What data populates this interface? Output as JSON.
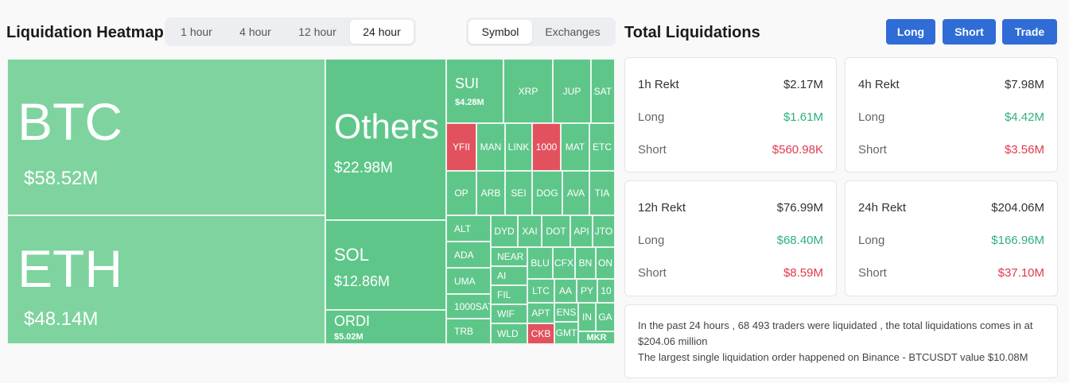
{
  "heatmap": {
    "title": "Liquidation Heatmap",
    "timeframes": [
      {
        "label": "1 hour",
        "active": false
      },
      {
        "label": "4 hour",
        "active": false
      },
      {
        "label": "12 hour",
        "active": false
      },
      {
        "label": "24 hour",
        "active": true
      }
    ],
    "views": [
      {
        "label": "Symbol",
        "active": true
      },
      {
        "label": "Exchanges",
        "active": false
      }
    ],
    "cells": {
      "btc": {
        "symbol": "BTC",
        "value": "$58.52M"
      },
      "eth": {
        "symbol": "ETH",
        "value": "$48.14M"
      },
      "others": {
        "symbol": "Others",
        "value": "$22.98M"
      },
      "sol": {
        "symbol": "SOL",
        "value": "$12.86M"
      },
      "ordi": {
        "symbol": "ORDI",
        "value": "$5.02M"
      },
      "sui": {
        "symbol": "SUI",
        "value": "$4.28M"
      },
      "xrp": "XRP",
      "jup": "JUP",
      "sat": "SAT",
      "yfii": "YFII",
      "man": "MAN",
      "link": "LINK",
      "k1000": "1000",
      "mat": "MAT",
      "etc": "ETC",
      "op": "OP",
      "arb": "ARB",
      "sei": "SEI",
      "dog": "DOG",
      "ava": "AVA",
      "tia": "TIA",
      "alt": "ALT",
      "ada": "ADA",
      "uma": "UMA",
      "sats": "1000SAT",
      "trb": "TRB",
      "dyd": "DYD",
      "xai": "XAI",
      "dot": "DOT",
      "api": "API",
      "jto": "JTO",
      "near": "NEAR",
      "ai": "AI",
      "fil": "FIL",
      "wif": "WIF",
      "wld": "WLD",
      "blu": "BLU",
      "cfx": "CFX",
      "bn": "BN",
      "on": "ON",
      "ltc": "LTC",
      "aa": "AA",
      "py": "PY",
      "k10": "10",
      "apt": "APT",
      "ens": "ENS",
      "in": "IN",
      "ga": "GA",
      "ckb": "CKB",
      "gmt": "GMT",
      "mkr": "MKR"
    }
  },
  "totals": {
    "title": "Total Liquidations",
    "buttons": {
      "long": "Long",
      "short": "Short",
      "trade": "Trade"
    },
    "cards": [
      {
        "title": "1h Rekt",
        "total": "$2.17M",
        "long_label": "Long",
        "long": "$1.61M",
        "short_label": "Short",
        "short": "$560.98K"
      },
      {
        "title": "4h Rekt",
        "total": "$7.98M",
        "long_label": "Long",
        "long": "$4.42M",
        "short_label": "Short",
        "short": "$3.56M"
      },
      {
        "title": "12h Rekt",
        "total": "$76.99M",
        "long_label": "Long",
        "long": "$68.40M",
        "short_label": "Short",
        "short": "$8.59M"
      },
      {
        "title": "24h Rekt",
        "total": "$204.06M",
        "long_label": "Long",
        "long": "$166.96M",
        "short_label": "Short",
        "short": "$37.10M"
      }
    ],
    "summary_line1": "In the past 24 hours , 68 493 traders were liquidated , the total liquidations comes in at $204.06 million",
    "summary_line2": "The largest single liquidation order happened on Binance - BTCUSDT value $10.08M"
  },
  "colors": {
    "accent": "#2f6cd6",
    "cell_green": "#5fc68a",
    "cell_light": "#7ed39e",
    "cell_red": "#e2525e",
    "long": "#2fb17a",
    "short": "#e03a4c"
  }
}
